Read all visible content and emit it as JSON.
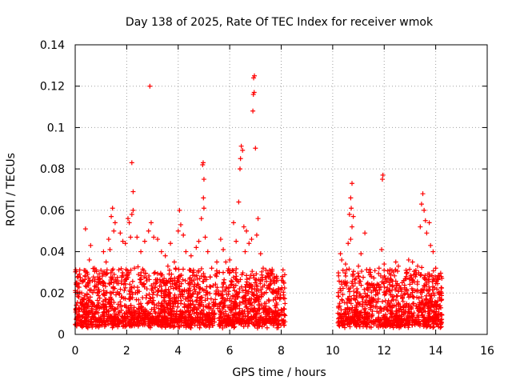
{
  "chart_data": {
    "type": "scatter",
    "title": "Day 138 of 2025, Rate Of TEC Index for receiver wmok",
    "xlabel": "GPS time / hours",
    "ylabel": "ROTI / TECUs",
    "xlim": [
      0,
      16
    ],
    "ylim": [
      0,
      0.14
    ],
    "xticks": [
      "0",
      "2",
      "4",
      "6",
      "8",
      "10",
      "12",
      "14",
      "16"
    ],
    "yticks": [
      "0",
      "0.02",
      "0.04",
      "0.06",
      "0.08",
      "0.1",
      "0.12",
      "0.14"
    ],
    "grid": true,
    "marker": "+",
    "color": "#ff0000",
    "series": [
      {
        "name": "wmok",
        "segments": [
          [
            0.0,
            8.15
          ],
          [
            10.2,
            14.25
          ]
        ],
        "points": [
          [
            0.05,
            0.024
          ],
          [
            0.12,
            0.028
          ],
          [
            0.25,
            0.02
          ],
          [
            0.35,
            0.031
          ],
          [
            0.4,
            0.051
          ],
          [
            0.55,
            0.036
          ],
          [
            0.6,
            0.043
          ],
          [
            0.75,
            0.032
          ],
          [
            0.9,
            0.025
          ],
          [
            1.0,
            0.031
          ],
          [
            1.1,
            0.04
          ],
          [
            1.2,
            0.035
          ],
          [
            1.3,
            0.046
          ],
          [
            1.35,
            0.041
          ],
          [
            1.45,
            0.061
          ],
          [
            1.4,
            0.057
          ],
          [
            1.5,
            0.05
          ],
          [
            1.55,
            0.054
          ],
          [
            1.75,
            0.049
          ],
          [
            1.85,
            0.045
          ],
          [
            1.95,
            0.044
          ],
          [
            2.05,
            0.056
          ],
          [
            2.1,
            0.054
          ],
          [
            2.15,
            0.047
          ],
          [
            2.2,
            0.058
          ],
          [
            2.25,
            0.06
          ],
          [
            2.25,
            0.069
          ],
          [
            2.2,
            0.083
          ],
          [
            2.4,
            0.047
          ],
          [
            2.55,
            0.04
          ],
          [
            2.7,
            0.045
          ],
          [
            2.85,
            0.05
          ],
          [
            2.9,
            0.12
          ],
          [
            2.95,
            0.054
          ],
          [
            3.05,
            0.047
          ],
          [
            3.2,
            0.046
          ],
          [
            3.35,
            0.04
          ],
          [
            3.5,
            0.038
          ],
          [
            3.6,
            0.033
          ],
          [
            3.7,
            0.044
          ],
          [
            3.85,
            0.035
          ],
          [
            3.9,
            0.032
          ],
          [
            4.0,
            0.05
          ],
          [
            4.05,
            0.06
          ],
          [
            4.1,
            0.053
          ],
          [
            4.2,
            0.048
          ],
          [
            4.3,
            0.04
          ],
          [
            4.5,
            0.038
          ],
          [
            4.6,
            0.03
          ],
          [
            4.7,
            0.042
          ],
          [
            4.8,
            0.045
          ],
          [
            4.9,
            0.056
          ],
          [
            4.95,
            0.082
          ],
          [
            4.97,
            0.083
          ],
          [
            5.0,
            0.075
          ],
          [
            4.98,
            0.066
          ],
          [
            5.0,
            0.061
          ],
          [
            5.05,
            0.047
          ],
          [
            5.15,
            0.04
          ],
          [
            5.3,
            0.032
          ],
          [
            5.5,
            0.035
          ],
          [
            5.6,
            0.03
          ],
          [
            5.65,
            0.046
          ],
          [
            5.75,
            0.041
          ],
          [
            5.85,
            0.035
          ],
          [
            6.0,
            0.036
          ],
          [
            6.1,
            0.031
          ],
          [
            6.15,
            0.054
          ],
          [
            6.25,
            0.045
          ],
          [
            6.35,
            0.064
          ],
          [
            6.4,
            0.08
          ],
          [
            6.42,
            0.085
          ],
          [
            6.45,
            0.091
          ],
          [
            6.5,
            0.089
          ],
          [
            6.55,
            0.052
          ],
          [
            6.6,
            0.04
          ],
          [
            6.65,
            0.05
          ],
          [
            6.75,
            0.044
          ],
          [
            6.85,
            0.046
          ],
          [
            6.9,
            0.108
          ],
          [
            6.92,
            0.116
          ],
          [
            6.95,
            0.117
          ],
          [
            6.93,
            0.124
          ],
          [
            6.96,
            0.125
          ],
          [
            7.0,
            0.09
          ],
          [
            7.05,
            0.048
          ],
          [
            7.1,
            0.056
          ],
          [
            7.2,
            0.039
          ],
          [
            7.3,
            0.032
          ],
          [
            7.45,
            0.028
          ],
          [
            7.55,
            0.031
          ],
          [
            7.7,
            0.026
          ],
          [
            7.9,
            0.022
          ],
          [
            8.05,
            0.028
          ],
          [
            8.1,
            0.025
          ],
          [
            10.3,
            0.039
          ],
          [
            10.35,
            0.036
          ],
          [
            10.4,
            0.031
          ],
          [
            10.5,
            0.034
          ],
          [
            10.6,
            0.044
          ],
          [
            10.65,
            0.058
          ],
          [
            10.7,
            0.066
          ],
          [
            10.75,
            0.073
          ],
          [
            10.72,
            0.061
          ],
          [
            10.8,
            0.057
          ],
          [
            10.75,
            0.052
          ],
          [
            10.7,
            0.046
          ],
          [
            10.9,
            0.027
          ],
          [
            11.0,
            0.033
          ],
          [
            11.1,
            0.039
          ],
          [
            11.25,
            0.049
          ],
          [
            11.4,
            0.03
          ],
          [
            11.5,
            0.028
          ],
          [
            11.6,
            0.024
          ],
          [
            11.8,
            0.032
          ],
          [
            11.9,
            0.041
          ],
          [
            11.93,
            0.075
          ],
          [
            11.95,
            0.077
          ],
          [
            12.0,
            0.034
          ],
          [
            12.15,
            0.027
          ],
          [
            12.3,
            0.031
          ],
          [
            12.45,
            0.035
          ],
          [
            12.55,
            0.033
          ],
          [
            12.7,
            0.025
          ],
          [
            12.85,
            0.031
          ],
          [
            12.95,
            0.036
          ],
          [
            13.1,
            0.035
          ],
          [
            13.2,
            0.029
          ],
          [
            13.3,
            0.033
          ],
          [
            13.4,
            0.052
          ],
          [
            13.45,
            0.063
          ],
          [
            13.5,
            0.068
          ],
          [
            13.55,
            0.06
          ],
          [
            13.6,
            0.055
          ],
          [
            13.65,
            0.049
          ],
          [
            13.75,
            0.054
          ],
          [
            13.8,
            0.043
          ],
          [
            13.9,
            0.04
          ],
          [
            14.0,
            0.032
          ],
          [
            14.1,
            0.02
          ],
          [
            14.2,
            0.017
          ]
        ]
      }
    ]
  }
}
